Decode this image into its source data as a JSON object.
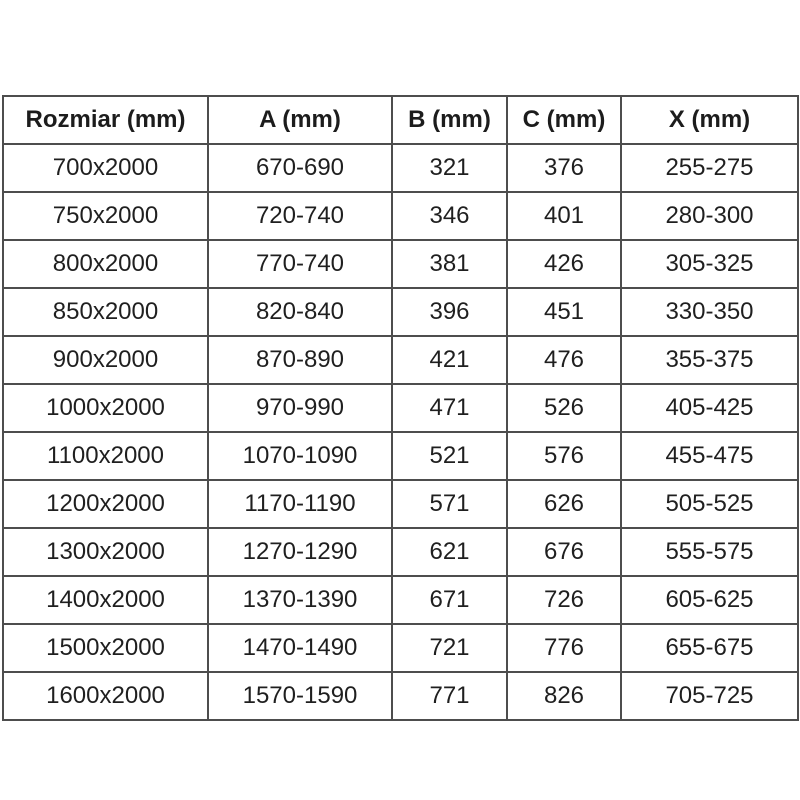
{
  "chart_data": {
    "type": "table",
    "columns": [
      "Rozmiar (mm)",
      "A (mm)",
      "B (mm)",
      "C (mm)",
      "X (mm)"
    ],
    "rows": [
      [
        "700x2000",
        "670-690",
        "321",
        "376",
        "255-275"
      ],
      [
        "750x2000",
        "720-740",
        "346",
        "401",
        "280-300"
      ],
      [
        "800x2000",
        "770-740",
        "381",
        "426",
        "305-325"
      ],
      [
        "850x2000",
        "820-840",
        "396",
        "451",
        "330-350"
      ],
      [
        "900x2000",
        "870-890",
        "421",
        "476",
        "355-375"
      ],
      [
        "1000x2000",
        "970-990",
        "471",
        "526",
        "405-425"
      ],
      [
        "1100x2000",
        "1070-1090",
        "521",
        "576",
        "455-475"
      ],
      [
        "1200x2000",
        "1170-1190",
        "571",
        "626",
        "505-525"
      ],
      [
        "1300x2000",
        "1270-1290",
        "621",
        "676",
        "555-575"
      ],
      [
        "1400x2000",
        "1370-1390",
        "671",
        "726",
        "605-625"
      ],
      [
        "1500x2000",
        "1470-1490",
        "721",
        "776",
        "655-675"
      ],
      [
        "1600x2000",
        "1570-1590",
        "771",
        "826",
        "705-725"
      ]
    ],
    "layout": {
      "legend": "none",
      "grid": "full-borders",
      "header_style": "bold",
      "cell_alignment": "center"
    }
  },
  "colors": {
    "background": "#ffffff",
    "text": "#1f1f1f",
    "border": "#4d4d4d"
  }
}
